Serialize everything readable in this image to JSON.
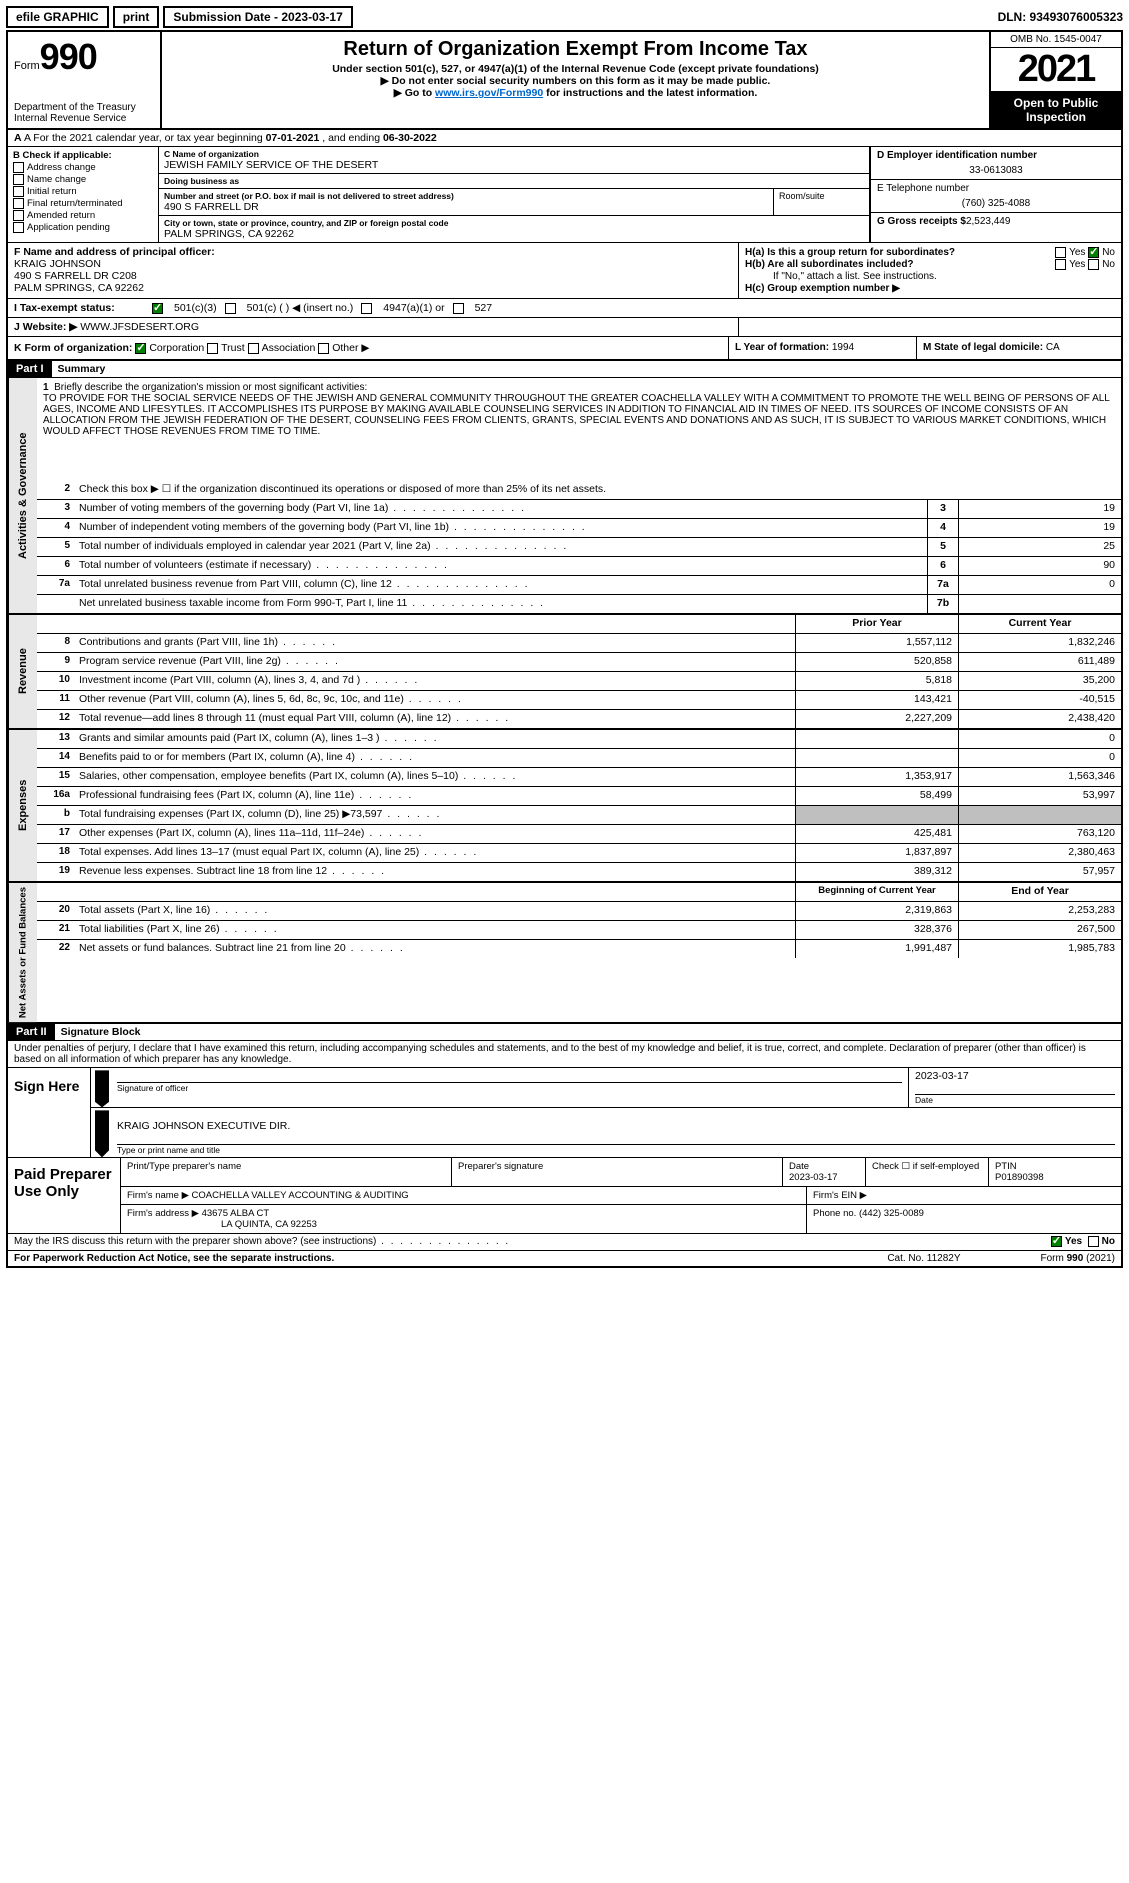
{
  "top": {
    "efile": "efile GRAPHIC",
    "print": "print",
    "subdate_label": "Submission Date - 2023-03-17",
    "dln": "DLN: 93493076005323"
  },
  "header": {
    "form_label": "Form",
    "form_no": "990",
    "dept": "Department of the Treasury",
    "irs": "Internal Revenue Service",
    "title": "Return of Organization Exempt From Income Tax",
    "sub1": "Under section 501(c), 527, or 4947(a)(1) of the Internal Revenue Code (except private foundations)",
    "sub2": "▶ Do not enter social security numbers on this form as it may be made public.",
    "sub3_pre": "▶ Go to ",
    "sub3_link": "www.irs.gov/Form990",
    "sub3_post": " for instructions and the latest information.",
    "omb": "OMB No. 1545-0047",
    "year": "2021",
    "open": "Open to Public Inspection"
  },
  "rowA": {
    "text_pre": "A For the 2021 calendar year, or tax year beginning ",
    "begin": "07-01-2021",
    "mid": " , and ending ",
    "end": "06-30-2022"
  },
  "colB": {
    "label": "B Check if applicable:",
    "opts": [
      "Address change",
      "Name change",
      "Initial return",
      "Final return/terminated",
      "Amended return",
      "Application pending"
    ]
  },
  "colC": {
    "c_label": "C Name of organization",
    "name": "JEWISH FAMILY SERVICE OF THE DESERT",
    "dba_label": "Doing business as",
    "dba": "",
    "addr_label": "Number and street (or P.O. box if mail is not delivered to street address)",
    "addr": "490 S FARRELL DR",
    "room_label": "Room/suite",
    "city_label": "City or town, state or province, country, and ZIP or foreign postal code",
    "city": "PALM SPRINGS, CA  92262"
  },
  "colD": {
    "d_label": "D Employer identification number",
    "ein": "33-0613083",
    "e_label": "E Telephone number",
    "phone": "(760) 325-4088",
    "g_label": "G Gross receipts $",
    "gross": "2,523,449"
  },
  "rowF": {
    "f_label": "F  Name and address of principal officer:",
    "name": "KRAIG JOHNSON",
    "addr1": "490 S FARRELL DR C208",
    "addr2": "PALM SPRINGS, CA  92262"
  },
  "rowH": {
    "ha": "H(a)  Is this a group return for subordinates?",
    "hb": "H(b)  Are all subordinates included?",
    "hb_note": "If \"No,\" attach a list. See instructions.",
    "hc": "H(c)  Group exemption number ▶",
    "yes": "Yes",
    "no": "No"
  },
  "rowI": {
    "label": "I    Tax-exempt status:",
    "o1": "501(c)(3)",
    "o2": "501(c) (   ) ◀ (insert no.)",
    "o3": "4947(a)(1) or",
    "o4": "527"
  },
  "rowJ": {
    "label": "J   Website: ▶",
    "val": " WWW.JFSDESERT.ORG"
  },
  "rowK": {
    "label": "K Form of organization:",
    "corp": "Corporation",
    "trust": "Trust",
    "assoc": "Association",
    "other": "Other ▶",
    "l_label": "L Year of formation:",
    "l_val": "1994",
    "m_label": "M State of legal domicile:",
    "m_val": "CA"
  },
  "part1": {
    "hdr": "Part I",
    "title": "Summary",
    "line1_label": "Briefly describe the organization's mission or most significant activities:",
    "mission": "TO PROVIDE FOR THE SOCIAL SERVICE NEEDS OF THE JEWISH AND GENERAL COMMUNITY THROUGHOUT THE GREATER COACHELLA VALLEY WITH A COMMITMENT TO PROMOTE THE WELL BEING OF PERSONS OF ALL AGES, INCOME AND LIFESYTLES. IT ACCOMPLISHES ITS PURPOSE BY MAKING AVAILABLE COUNSELING SERVICES IN ADDITION TO FINANCIAL AID IN TIMES OF NEED. ITS SOURCES OF INCOME CONSISTS OF AN ALLOCATION FROM THE JEWISH FEDERATION OF THE DESERT, COUNSELING FEES FROM CLIENTS, GRANTS, SPECIAL EVENTS AND DONATIONS AND AS SUCH, IT IS SUBJECT TO VARIOUS MARKET CONDITIONS, WHICH WOULD AFFECT THOSE REVENUES FROM TIME TO TIME.",
    "line2": "Check this box ▶ ☐ if the organization discontinued its operations or disposed of more than 25% of its net assets.",
    "lines_ag": [
      {
        "n": "3",
        "d": "Number of voting members of the governing body (Part VI, line 1a)",
        "box": "3",
        "v": "19"
      },
      {
        "n": "4",
        "d": "Number of independent voting members of the governing body (Part VI, line 1b)",
        "box": "4",
        "v": "19"
      },
      {
        "n": "5",
        "d": "Total number of individuals employed in calendar year 2021 (Part V, line 2a)",
        "box": "5",
        "v": "25"
      },
      {
        "n": "6",
        "d": "Total number of volunteers (estimate if necessary)",
        "box": "6",
        "v": "90"
      },
      {
        "n": "7a",
        "d": "Total unrelated business revenue from Part VIII, column (C), line 12",
        "box": "7a",
        "v": "0"
      },
      {
        "n": "",
        "d": "Net unrelated business taxable income from Form 990-T, Part I, line 11",
        "box": "7b",
        "v": ""
      }
    ],
    "col_prior": "Prior Year",
    "col_current": "Current Year",
    "rev": [
      {
        "n": "8",
        "d": "Contributions and grants (Part VIII, line 1h)",
        "p": "1,557,112",
        "c": "1,832,246"
      },
      {
        "n": "9",
        "d": "Program service revenue (Part VIII, line 2g)",
        "p": "520,858",
        "c": "611,489"
      },
      {
        "n": "10",
        "d": "Investment income (Part VIII, column (A), lines 3, 4, and 7d )",
        "p": "5,818",
        "c": "35,200"
      },
      {
        "n": "11",
        "d": "Other revenue (Part VIII, column (A), lines 5, 6d, 8c, 9c, 10c, and 11e)",
        "p": "143,421",
        "c": "-40,515"
      },
      {
        "n": "12",
        "d": "Total revenue—add lines 8 through 11 (must equal Part VIII, column (A), line 12)",
        "p": "2,227,209",
        "c": "2,438,420"
      }
    ],
    "exp": [
      {
        "n": "13",
        "d": "Grants and similar amounts paid (Part IX, column (A), lines 1–3 )",
        "p": "",
        "c": "0"
      },
      {
        "n": "14",
        "d": "Benefits paid to or for members (Part IX, column (A), line 4)",
        "p": "",
        "c": "0"
      },
      {
        "n": "15",
        "d": "Salaries, other compensation, employee benefits (Part IX, column (A), lines 5–10)",
        "p": "1,353,917",
        "c": "1,563,346"
      },
      {
        "n": "16a",
        "d": "Professional fundraising fees (Part IX, column (A), line 11e)",
        "p": "58,499",
        "c": "53,997"
      },
      {
        "n": "b",
        "d": "Total fundraising expenses (Part IX, column (D), line 25) ▶73,597",
        "p": "GREY",
        "c": "GREY"
      },
      {
        "n": "17",
        "d": "Other expenses (Part IX, column (A), lines 11a–11d, 11f–24e)",
        "p": "425,481",
        "c": "763,120"
      },
      {
        "n": "18",
        "d": "Total expenses. Add lines 13–17 (must equal Part IX, column (A), line 25)",
        "p": "1,837,897",
        "c": "2,380,463"
      },
      {
        "n": "19",
        "d": "Revenue less expenses. Subtract line 18 from line 12",
        "p": "389,312",
        "c": "57,957"
      }
    ],
    "col_boy": "Beginning of Current Year",
    "col_eoy": "End of Year",
    "net": [
      {
        "n": "20",
        "d": "Total assets (Part X, line 16)",
        "p": "2,319,863",
        "c": "2,253,283"
      },
      {
        "n": "21",
        "d": "Total liabilities (Part X, line 26)",
        "p": "328,376",
        "c": "267,500"
      },
      {
        "n": "22",
        "d": "Net assets or fund balances. Subtract line 21 from line 20",
        "p": "1,991,487",
        "c": "1,985,783"
      }
    ],
    "vtab_ag": "Activities & Governance",
    "vtab_rev": "Revenue",
    "vtab_exp": "Expenses",
    "vtab_net": "Net Assets or Fund Balances"
  },
  "part2": {
    "hdr": "Part II",
    "title": "Signature Block",
    "decl": "Under penalties of perjury, I declare that I have examined this return, including accompanying schedules and statements, and to the best of my knowledge and belief, it is true, correct, and complete. Declaration of preparer (other than officer) is based on all information of which preparer has any knowledge.",
    "sign_here": "Sign Here",
    "sig_officer": "Signature of officer",
    "sig_date": "2023-03-17",
    "date_lbl": "Date",
    "officer_name": "KRAIG JOHNSON EXECUTIVE DIR.",
    "name_title": "Type or print name and title",
    "paid": "Paid Preparer Use Only",
    "p_name_lbl": "Print/Type preparer's name",
    "p_sig_lbl": "Preparer's signature",
    "p_date_lbl": "Date",
    "p_date": "2023-03-17",
    "p_check": "Check ☐ if self-employed",
    "ptin_lbl": "PTIN",
    "ptin": "P01890398",
    "firm_name_lbl": "Firm's name    ▶",
    "firm_name": "COACHELLA VALLEY ACCOUNTING & AUDITING",
    "firm_ein_lbl": "Firm's EIN ▶",
    "firm_addr_lbl": "Firm's address ▶",
    "firm_addr1": "43675 ALBA CT",
    "firm_addr2": "LA QUINTA, CA  92253",
    "firm_phone_lbl": "Phone no.",
    "firm_phone": "(442) 325-0089"
  },
  "footer": {
    "q": "May the IRS discuss this return with the preparer shown above? (see instructions)",
    "yes": "Yes",
    "no": "No",
    "pra": "For Paperwork Reduction Act Notice, see the separate instructions.",
    "cat": "Cat. No. 11282Y",
    "form": "Form 990 (2021)"
  }
}
